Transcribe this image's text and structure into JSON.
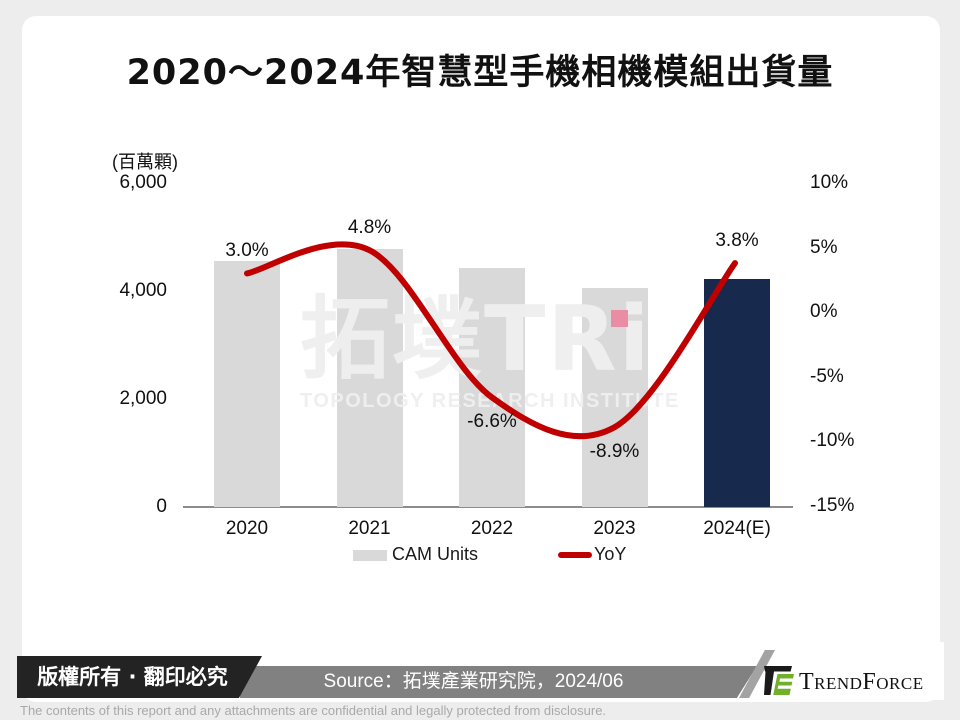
{
  "page": {
    "title": "2020～2024年智慧型手機相機模組出貨量"
  },
  "chart_data": {
    "type": "combo-bar-line",
    "title": "2020～2024年智慧型手機相機模組出貨量",
    "categories": [
      "2020",
      "2021",
      "2022",
      "2023",
      "2024(E)"
    ],
    "series": [
      {
        "name": "CAM Units",
        "type": "bar",
        "axis": "left",
        "values": [
          4550,
          4780,
          4430,
          4060,
          4220
        ]
      },
      {
        "name": "YoY",
        "type": "line",
        "axis": "right",
        "values": [
          3.0,
          4.8,
          -6.6,
          -8.9,
          3.8
        ],
        "point_labels": [
          "3.0%",
          "4.8%",
          "-6.6%",
          "-8.9%",
          "3.8%"
        ]
      }
    ],
    "left_axis": {
      "unit_label": "(百萬顆)",
      "tick_labels": [
        "6,000",
        "4,000",
        "2,000",
        "0"
      ],
      "tick_values": [
        6000,
        4000,
        2000,
        0
      ],
      "range": [
        0,
        6000
      ]
    },
    "right_axis": {
      "tick_labels": [
        "10%",
        "5%",
        "0%",
        "-5%",
        "-10%",
        "-15%"
      ],
      "tick_values": [
        10,
        5,
        0,
        -5,
        -10,
        -15
      ],
      "range": [
        -15,
        10
      ]
    },
    "legend": {
      "position": "bottom",
      "items": [
        {
          "label": "CAM Units",
          "swatch_type": "rect",
          "swatch_color": "#d9d9d9"
        },
        {
          "label": "YoY",
          "swatch_type": "line",
          "swatch_color": "#c00000"
        }
      ]
    },
    "bar_colors": [
      "#d9d9d9",
      "#d9d9d9",
      "#d9d9d9",
      "#d9d9d9",
      "#17294d"
    ],
    "line_color": "#c00000",
    "gridlines": false
  },
  "watermark": {
    "text": "拓墣TRi",
    "subtitle": "TOPOLOGY RESEARCH INSTITUTE",
    "i_dot_color": "#e98ca4"
  },
  "footer": {
    "copyright": "版權所有 · 翻印必究",
    "source": "Source：拓墣產業研究院，2024/06",
    "brand": "TrendForce",
    "disclaimer": "The contents of this report and any attachments are confidential and legally protected from disclosure."
  },
  "colors": {
    "page_bg": "#ededed",
    "card_bg": "#ffffff",
    "bar_gray": "#d9d9d9",
    "bar_navy": "#17294d",
    "line_red": "#c00000",
    "axis_line": "#8c8c8c",
    "footer_black": "#232323",
    "footer_gray": "#818181",
    "brand_green": "#72b02c"
  }
}
